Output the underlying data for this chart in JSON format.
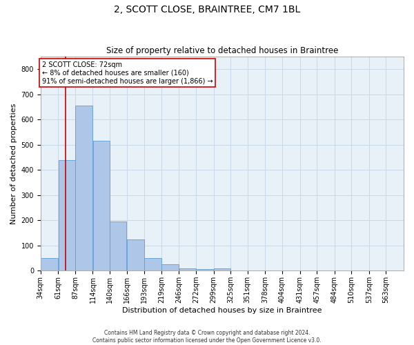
{
  "title": "2, SCOTT CLOSE, BRAINTREE, CM7 1BL",
  "subtitle": "Size of property relative to detached houses in Braintree",
  "xlabel": "Distribution of detached houses by size in Braintree",
  "ylabel": "Number of detached properties",
  "bins": [
    "34sqm",
    "61sqm",
    "87sqm",
    "114sqm",
    "140sqm",
    "166sqm",
    "193sqm",
    "219sqm",
    "246sqm",
    "272sqm",
    "299sqm",
    "325sqm",
    "351sqm",
    "378sqm",
    "404sqm",
    "431sqm",
    "457sqm",
    "484sqm",
    "510sqm",
    "537sqm",
    "563sqm"
  ],
  "bin_edges": [
    34,
    61,
    87,
    114,
    140,
    166,
    193,
    219,
    246,
    272,
    299,
    325,
    351,
    378,
    404,
    431,
    457,
    484,
    510,
    537,
    563,
    590
  ],
  "values": [
    50,
    440,
    655,
    515,
    195,
    125,
    50,
    25,
    10,
    5,
    10,
    0,
    0,
    0,
    0,
    0,
    0,
    0,
    0,
    0,
    0
  ],
  "bar_color": "#aec6e8",
  "bar_edge_color": "#5a9fd4",
  "property_size": 72,
  "property_line_color": "#cc0000",
  "annotation_text": "2 SCOTT CLOSE: 72sqm\n← 8% of detached houses are smaller (160)\n91% of semi-detached houses are larger (1,866) →",
  "annotation_box_color": "#cc0000",
  "ylim": [
    0,
    850
  ],
  "yticks": [
    0,
    100,
    200,
    300,
    400,
    500,
    600,
    700,
    800
  ],
  "grid_color": "#c8d8e8",
  "bg_color": "#e8f0f8",
  "footer": "Contains HM Land Registry data © Crown copyright and database right 2024.\nContains public sector information licensed under the Open Government Licence v3.0.",
  "title_fontsize": 10,
  "subtitle_fontsize": 8.5,
  "ylabel_fontsize": 8,
  "xlabel_fontsize": 8,
  "tick_fontsize": 7,
  "annotation_fontsize": 7,
  "footer_fontsize": 5.5
}
